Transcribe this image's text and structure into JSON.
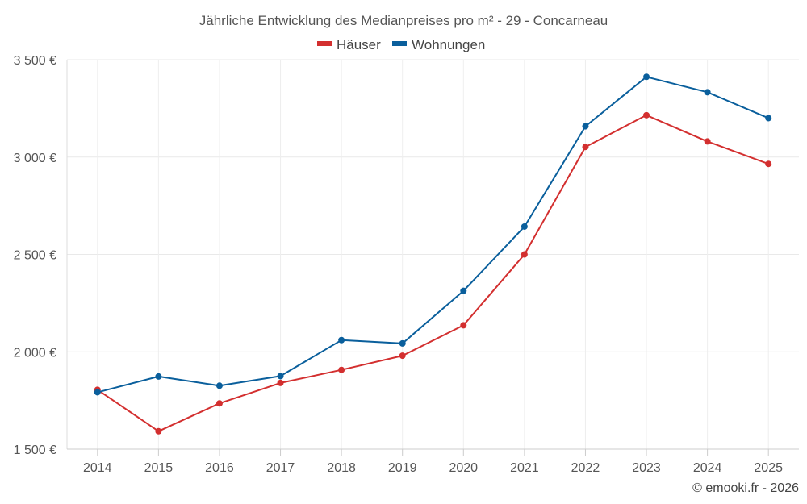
{
  "chart_data": {
    "type": "line",
    "title": "Jährliche Entwicklung des Medianpreises pro m² - 29 - Concarneau",
    "categories": [
      "2014",
      "2015",
      "2016",
      "2017",
      "2018",
      "2019",
      "2020",
      "2021",
      "2022",
      "2023",
      "2024",
      "2025"
    ],
    "series": [
      {
        "name": "Häuser",
        "color": "#d32f2f",
        "values": [
          1805,
          1592,
          1735,
          1840,
          1907,
          1980,
          2136,
          2500,
          3052,
          3215,
          3080,
          2965
        ]
      },
      {
        "name": "Wohnungen",
        "color": "#0a5f9c",
        "values": [
          1792,
          1873,
          1826,
          1875,
          2060,
          2043,
          2313,
          2643,
          3158,
          3412,
          3333,
          3200
        ]
      }
    ],
    "ylim": [
      1500,
      3500
    ],
    "yticks": [
      1500,
      2000,
      2500,
      3000,
      3500
    ],
    "ytick_labels": [
      "1 500 €",
      "2 000 €",
      "2 500 €",
      "3 000 €",
      "3 500 €"
    ],
    "xlabel": "",
    "ylabel": "",
    "grid": true,
    "legend_position": "top-center"
  },
  "credit": "© emooki.fr - 2026"
}
